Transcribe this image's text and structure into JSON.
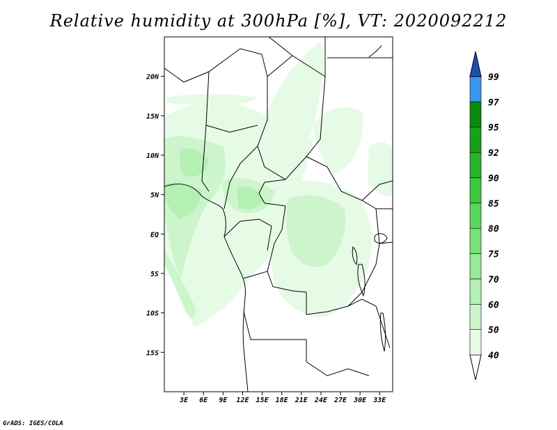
{
  "title": "Relative humidity at 300hPa [%], VT: 2020092212",
  "credit": "GrADS: IGES/COLA",
  "map": {
    "projection": "latlon",
    "lon_range": [
      0,
      35
    ],
    "lat_range": [
      -20,
      25
    ],
    "lat_ticks": [
      {
        "value": 20,
        "label": "20N"
      },
      {
        "value": 15,
        "label": "15N"
      },
      {
        "value": 10,
        "label": "10N"
      },
      {
        "value": 5,
        "label": "5N"
      },
      {
        "value": 0,
        "label": "EQ"
      },
      {
        "value": -5,
        "label": "5S"
      },
      {
        "value": -10,
        "label": "10S"
      },
      {
        "value": -15,
        "label": "15S"
      }
    ],
    "lon_ticks": [
      {
        "value": 3,
        "label": "3E"
      },
      {
        "value": 6,
        "label": "6E"
      },
      {
        "value": 9,
        "label": "9E"
      },
      {
        "value": 12,
        "label": "12E"
      },
      {
        "value": 15,
        "label": "15E"
      },
      {
        "value": 18,
        "label": "18E"
      },
      {
        "value": 21,
        "label": "21E"
      },
      {
        "value": 24,
        "label": "24E"
      },
      {
        "value": 27,
        "label": "27E"
      },
      {
        "value": 30,
        "label": "30E"
      },
      {
        "value": 33,
        "label": "33E"
      }
    ]
  },
  "colorbar": {
    "levels": [
      {
        "label": "40",
        "color": "#e6fbe6"
      },
      {
        "label": "50",
        "color": "#ccf5cc"
      },
      {
        "label": "60",
        "color": "#b4efb4"
      },
      {
        "label": "70",
        "color": "#96e996"
      },
      {
        "label": "75",
        "color": "#78e178"
      },
      {
        "label": "80",
        "color": "#5ad75a"
      },
      {
        "label": "85",
        "color": "#3cc83c"
      },
      {
        "label": "90",
        "color": "#28b428"
      },
      {
        "label": "92",
        "color": "#19a019"
      },
      {
        "label": "95",
        "color": "#0a8c0a"
      },
      {
        "label": "97",
        "color": "#3c96f0"
      },
      {
        "label": "99",
        "color": "#1e6ed2"
      }
    ],
    "top_arrow_color": "#1e50b4",
    "bottom_arrow_color": "#ffffff"
  }
}
